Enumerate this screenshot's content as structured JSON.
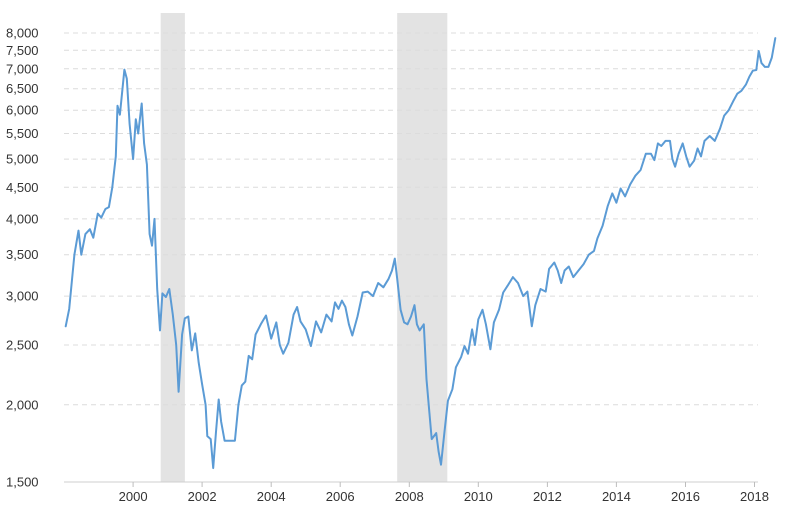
{
  "chart_data": {
    "type": "line",
    "title": "",
    "xlabel": "",
    "ylabel": "",
    "y_scale": "log",
    "ylim": [
      1500,
      8000
    ],
    "xlim": [
      1998.0,
      2018.1
    ],
    "grid": true,
    "legend": "none",
    "y_ticks": [
      {
        "value": 1500,
        "label": "1,500"
      },
      {
        "value": 2000,
        "label": "2,000"
      },
      {
        "value": 2500,
        "label": "2,500"
      },
      {
        "value": 3000,
        "label": "3,000"
      },
      {
        "value": 3500,
        "label": "3,500"
      },
      {
        "value": 4000,
        "label": "4,000"
      },
      {
        "value": 4500,
        "label": "4,500"
      },
      {
        "value": 5000,
        "label": "5,000"
      },
      {
        "value": 5500,
        "label": "5,500"
      },
      {
        "value": 6000,
        "label": "6,000"
      },
      {
        "value": 6500,
        "label": "6,500"
      },
      {
        "value": 7000,
        "label": "7,000"
      },
      {
        "value": 7500,
        "label": "7,500"
      },
      {
        "value": 8000,
        "label": "8,000"
      }
    ],
    "x_ticks": [
      {
        "value": 2000,
        "label": "2000"
      },
      {
        "value": 2002,
        "label": "2002"
      },
      {
        "value": 2004,
        "label": "2004"
      },
      {
        "value": 2006,
        "label": "2006"
      },
      {
        "value": 2008,
        "label": "2008"
      },
      {
        "value": 2010,
        "label": "2010"
      },
      {
        "value": 2012,
        "label": "2012"
      },
      {
        "value": 2014,
        "label": "2014"
      },
      {
        "value": 2016,
        "label": "2016"
      },
      {
        "value": 2018,
        "label": "2018"
      }
    ],
    "recession_bands": [
      {
        "start": 2000.8,
        "end": 2001.5
      },
      {
        "start": 2007.65,
        "end": 2009.1
      }
    ],
    "colors": {
      "line": "#5b9bd5",
      "recession": "#e3e3e3",
      "grid": "#dcdcdc"
    },
    "series": [
      {
        "values": [
          [
            1998.05,
            2680
          ],
          [
            1998.15,
            2860
          ],
          [
            1998.3,
            3500
          ],
          [
            1998.42,
            3830
          ],
          [
            1998.5,
            3500
          ],
          [
            1998.62,
            3780
          ],
          [
            1998.75,
            3850
          ],
          [
            1998.85,
            3730
          ],
          [
            1998.98,
            4080
          ],
          [
            1999.08,
            4020
          ],
          [
            1999.2,
            4150
          ],
          [
            1999.3,
            4180
          ],
          [
            1999.4,
            4500
          ],
          [
            1999.5,
            5050
          ],
          [
            1999.55,
            6100
          ],
          [
            1999.62,
            5900
          ],
          [
            1999.7,
            6550
          ],
          [
            1999.75,
            6980
          ],
          [
            1999.82,
            6750
          ],
          [
            1999.9,
            5700
          ],
          [
            2000.0,
            5000
          ],
          [
            2000.08,
            5800
          ],
          [
            2000.15,
            5500
          ],
          [
            2000.25,
            6150
          ],
          [
            2000.32,
            5300
          ],
          [
            2000.4,
            4900
          ],
          [
            2000.48,
            3780
          ],
          [
            2000.55,
            3620
          ],
          [
            2000.62,
            4000
          ],
          [
            2000.7,
            3080
          ],
          [
            2000.78,
            2640
          ],
          [
            2000.85,
            3030
          ],
          [
            2000.95,
            2990
          ],
          [
            2001.05,
            3080
          ],
          [
            2001.15,
            2800
          ],
          [
            2001.25,
            2500
          ],
          [
            2001.32,
            2100
          ],
          [
            2001.42,
            2600
          ],
          [
            2001.5,
            2760
          ],
          [
            2001.6,
            2780
          ],
          [
            2001.7,
            2450
          ],
          [
            2001.8,
            2610
          ],
          [
            2001.9,
            2340
          ],
          [
            2002.0,
            2160
          ],
          [
            2002.1,
            2000
          ],
          [
            2002.15,
            1780
          ],
          [
            2002.25,
            1760
          ],
          [
            2002.32,
            1580
          ],
          [
            2002.4,
            1800
          ],
          [
            2002.48,
            2040
          ],
          [
            2002.55,
            1880
          ],
          [
            2002.65,
            1750
          ],
          [
            2002.8,
            1750
          ],
          [
            2002.95,
            1750
          ],
          [
            2003.05,
            2000
          ],
          [
            2003.15,
            2150
          ],
          [
            2003.25,
            2180
          ],
          [
            2003.35,
            2400
          ],
          [
            2003.45,
            2370
          ],
          [
            2003.55,
            2600
          ],
          [
            2003.7,
            2700
          ],
          [
            2003.85,
            2790
          ],
          [
            2004.0,
            2560
          ],
          [
            2004.15,
            2720
          ],
          [
            2004.25,
            2500
          ],
          [
            2004.35,
            2420
          ],
          [
            2004.5,
            2520
          ],
          [
            2004.65,
            2800
          ],
          [
            2004.75,
            2880
          ],
          [
            2004.85,
            2730
          ],
          [
            2005.0,
            2650
          ],
          [
            2005.15,
            2490
          ],
          [
            2005.3,
            2730
          ],
          [
            2005.45,
            2620
          ],
          [
            2005.6,
            2800
          ],
          [
            2005.75,
            2730
          ],
          [
            2005.85,
            2930
          ],
          [
            2005.95,
            2860
          ],
          [
            2006.05,
            2950
          ],
          [
            2006.15,
            2880
          ],
          [
            2006.25,
            2700
          ],
          [
            2006.35,
            2590
          ],
          [
            2006.5,
            2780
          ],
          [
            2006.65,
            3040
          ],
          [
            2006.8,
            3050
          ],
          [
            2006.95,
            3000
          ],
          [
            2007.1,
            3150
          ],
          [
            2007.25,
            3100
          ],
          [
            2007.4,
            3200
          ],
          [
            2007.5,
            3300
          ],
          [
            2007.58,
            3450
          ],
          [
            2007.65,
            3200
          ],
          [
            2007.75,
            2850
          ],
          [
            2007.85,
            2720
          ],
          [
            2007.95,
            2700
          ],
          [
            2008.05,
            2780
          ],
          [
            2008.15,
            2900
          ],
          [
            2008.22,
            2700
          ],
          [
            2008.3,
            2640
          ],
          [
            2008.42,
            2700
          ],
          [
            2008.5,
            2200
          ],
          [
            2008.58,
            1950
          ],
          [
            2008.65,
            1760
          ],
          [
            2008.78,
            1800
          ],
          [
            2008.85,
            1680
          ],
          [
            2008.92,
            1600
          ],
          [
            2009.02,
            1810
          ],
          [
            2009.12,
            2030
          ],
          [
            2009.25,
            2120
          ],
          [
            2009.35,
            2300
          ],
          [
            2009.5,
            2390
          ],
          [
            2009.6,
            2490
          ],
          [
            2009.7,
            2420
          ],
          [
            2009.82,
            2650
          ],
          [
            2009.9,
            2500
          ],
          [
            2010.0,
            2750
          ],
          [
            2010.12,
            2850
          ],
          [
            2010.22,
            2700
          ],
          [
            2010.35,
            2460
          ],
          [
            2010.45,
            2720
          ],
          [
            2010.6,
            2850
          ],
          [
            2010.72,
            3040
          ],
          [
            2010.85,
            3120
          ],
          [
            2011.0,
            3220
          ],
          [
            2011.15,
            3150
          ],
          [
            2011.3,
            3000
          ],
          [
            2011.42,
            3050
          ],
          [
            2011.55,
            2680
          ],
          [
            2011.65,
            2900
          ],
          [
            2011.8,
            3080
          ],
          [
            2011.95,
            3050
          ],
          [
            2012.05,
            3320
          ],
          [
            2012.2,
            3400
          ],
          [
            2012.3,
            3300
          ],
          [
            2012.4,
            3150
          ],
          [
            2012.5,
            3300
          ],
          [
            2012.62,
            3350
          ],
          [
            2012.75,
            3220
          ],
          [
            2012.9,
            3300
          ],
          [
            2013.05,
            3380
          ],
          [
            2013.2,
            3500
          ],
          [
            2013.35,
            3550
          ],
          [
            2013.45,
            3720
          ],
          [
            2013.6,
            3900
          ],
          [
            2013.75,
            4200
          ],
          [
            2013.88,
            4400
          ],
          [
            2014.0,
            4250
          ],
          [
            2014.12,
            4480
          ],
          [
            2014.25,
            4350
          ],
          [
            2014.4,
            4550
          ],
          [
            2014.55,
            4700
          ],
          [
            2014.7,
            4800
          ],
          [
            2014.85,
            5100
          ],
          [
            2015.0,
            5100
          ],
          [
            2015.1,
            4980
          ],
          [
            2015.2,
            5300
          ],
          [
            2015.3,
            5250
          ],
          [
            2015.42,
            5350
          ],
          [
            2015.55,
            5350
          ],
          [
            2015.62,
            5000
          ],
          [
            2015.7,
            4860
          ],
          [
            2015.8,
            5100
          ],
          [
            2015.92,
            5300
          ],
          [
            2016.02,
            5050
          ],
          [
            2016.12,
            4860
          ],
          [
            2016.25,
            4970
          ],
          [
            2016.35,
            5200
          ],
          [
            2016.45,
            5050
          ],
          [
            2016.55,
            5350
          ],
          [
            2016.7,
            5450
          ],
          [
            2016.85,
            5350
          ],
          [
            2017.0,
            5600
          ],
          [
            2017.12,
            5880
          ],
          [
            2017.25,
            6000
          ],
          [
            2017.38,
            6200
          ],
          [
            2017.5,
            6380
          ],
          [
            2017.62,
            6450
          ],
          [
            2017.75,
            6600
          ],
          [
            2017.85,
            6800
          ],
          [
            2017.95,
            6950
          ],
          [
            2018.05,
            6970
          ],
          [
            2018.12,
            7480
          ],
          [
            2018.2,
            7150
          ],
          [
            2018.3,
            7050
          ],
          [
            2018.4,
            7050
          ],
          [
            2018.5,
            7300
          ],
          [
            2018.6,
            7850
          ]
        ]
      }
    ]
  }
}
